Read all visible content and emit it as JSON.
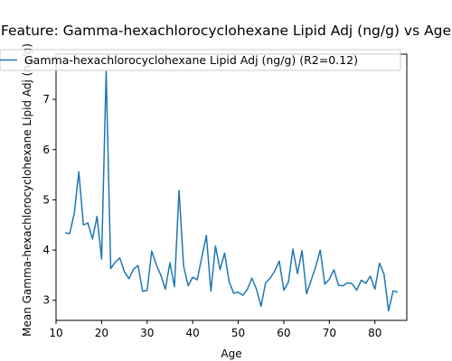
{
  "chart_data": {
    "type": "line",
    "title": "Feature: Gamma-hexachlorocyclohexane Lipid Adj (ng/g) vs Age",
    "xlabel": "Age",
    "ylabel": "Mean Gamma-hexachlorocyclohexane Lipid Adj (ng/g)",
    "xlim": [
      10,
      87
    ],
    "ylim": [
      2.6,
      7.9
    ],
    "xticks": [
      10,
      20,
      30,
      40,
      50,
      60,
      70,
      80
    ],
    "yticks": [
      3,
      4,
      5,
      6,
      7
    ],
    "grid": false,
    "legend": "top-left",
    "series": [
      {
        "name": "Gamma-hexachlorocyclohexane Lipid Adj (ng/g) (R2=0.12)",
        "color": "#1f77b4",
        "x": [
          12,
          13,
          14,
          15,
          16,
          17,
          18,
          19,
          20,
          21,
          22,
          23,
          24,
          25,
          26,
          27,
          28,
          29,
          30,
          31,
          32,
          33,
          34,
          35,
          36,
          37,
          38,
          39,
          40,
          41,
          42,
          43,
          44,
          45,
          46,
          47,
          48,
          49,
          50,
          51,
          52,
          53,
          54,
          55,
          56,
          57,
          58,
          59,
          60,
          61,
          62,
          63,
          64,
          65,
          66,
          67,
          68,
          69,
          70,
          71,
          72,
          73,
          74,
          75,
          76,
          77,
          78,
          79,
          80,
          81,
          82,
          83,
          84,
          85
        ],
        "y": [
          4.34,
          4.33,
          4.73,
          5.56,
          4.5,
          4.54,
          4.22,
          4.67,
          3.82,
          7.56,
          3.63,
          3.76,
          3.84,
          3.57,
          3.43,
          3.62,
          3.69,
          3.18,
          3.2,
          3.98,
          3.71,
          3.5,
          3.22,
          3.75,
          3.27,
          5.19,
          3.68,
          3.29,
          3.46,
          3.41,
          3.86,
          4.29,
          3.18,
          4.08,
          3.61,
          3.94,
          3.37,
          3.14,
          3.16,
          3.1,
          3.22,
          3.44,
          3.22,
          2.88,
          3.35,
          3.44,
          3.58,
          3.78,
          3.2,
          3.36,
          4.02,
          3.53,
          3.99,
          3.13,
          3.4,
          3.67,
          4.0,
          3.32,
          3.42,
          3.61,
          3.3,
          3.29,
          3.35,
          3.33,
          3.2,
          3.4,
          3.34,
          3.48,
          3.22,
          3.74,
          3.52,
          2.79,
          3.19,
          3.16
        ]
      }
    ]
  }
}
